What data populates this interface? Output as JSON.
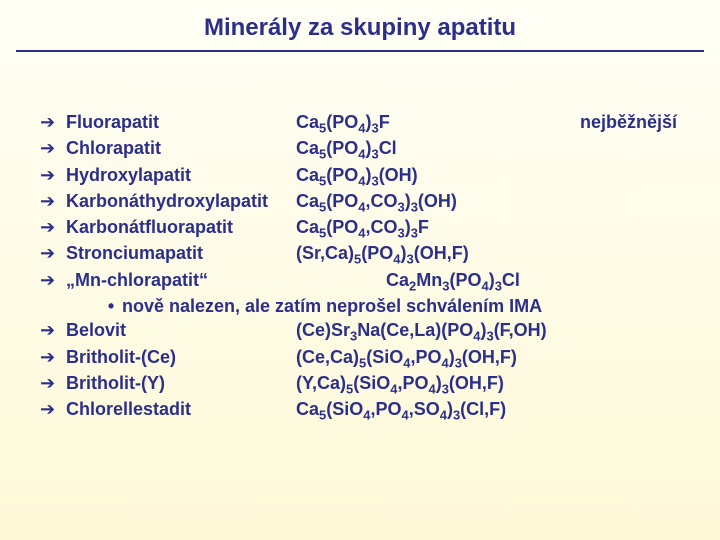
{
  "title_fontsize": 24,
  "body_fontsize": 18,
  "colors": {
    "text": "#2c2f8a",
    "rule": "#2c2f8a",
    "bg_top": "#fffef5",
    "bg_bottom": "#fef9d8"
  },
  "title": "Minerály za skupiny apatitu",
  "bullet_glyph": "➔",
  "subbullet_glyph": "•",
  "items": [
    {
      "name": "Fluorapatit",
      "formula": "Ca<sub>5</sub>(PO<sub>4</sub>)<sub>3</sub>F",
      "note": "nejběžnější"
    },
    {
      "name": "Chlorapatit",
      "formula": "Ca<sub>5</sub>(PO<sub>4</sub>)<sub>3</sub>Cl"
    },
    {
      "name": "Hydroxylapatit",
      "formula": "Ca<sub>5</sub>(PO<sub>4</sub>)<sub>3</sub>(OH)"
    },
    {
      "name": "Karbonáthydroxylapatit",
      "formula": "Ca<sub>5</sub>(PO<sub>4</sub>,CO<sub>3</sub>)<sub>3</sub>(OH)"
    },
    {
      "name": "Karbonátfluorapatit",
      "formula": "Ca<sub>5</sub>(PO<sub>4</sub>,CO<sub>3</sub>)<sub>3</sub>F"
    },
    {
      "name": "Stronciumapatit",
      "formula": "(Sr,Ca)<sub>5</sub>(PO<sub>4</sub>)<sub>3</sub>(OH,F)"
    },
    {
      "name": "„Mn-chlorapatit“",
      "formula": "Ca<sub>2</sub>Mn<sub>3</sub>(PO<sub>4</sub>)<sub>3</sub>Cl",
      "indent_formula": true,
      "sub": "nově nalezen, ale zatím neprošel schválením IMA"
    },
    {
      "name": "Belovit",
      "formula": "(Ce)Sr<sub>3</sub>Na(Ce,La)(PO<sub>4</sub>)<sub>3</sub>(F,OH)"
    },
    {
      "name": "Britholit-(Ce)",
      "formula": "(Ce,Ca)<sub>5</sub>(SiO<sub>4</sub>,PO<sub>4</sub>)<sub>3</sub>(OH,F)"
    },
    {
      "name": "Britholit-(Y)",
      "formula": "(Y,Ca)<sub>5</sub>(SiO<sub>4</sub>,PO<sub>4</sub>)<sub>3</sub>(OH,F)"
    },
    {
      "name": "Chlorellestadit",
      "formula": "Ca<sub>5</sub>(SiO<sub>4</sub>,PO<sub>4</sub>,SO<sub>4</sub>)<sub>3</sub>(Cl,F)"
    }
  ]
}
